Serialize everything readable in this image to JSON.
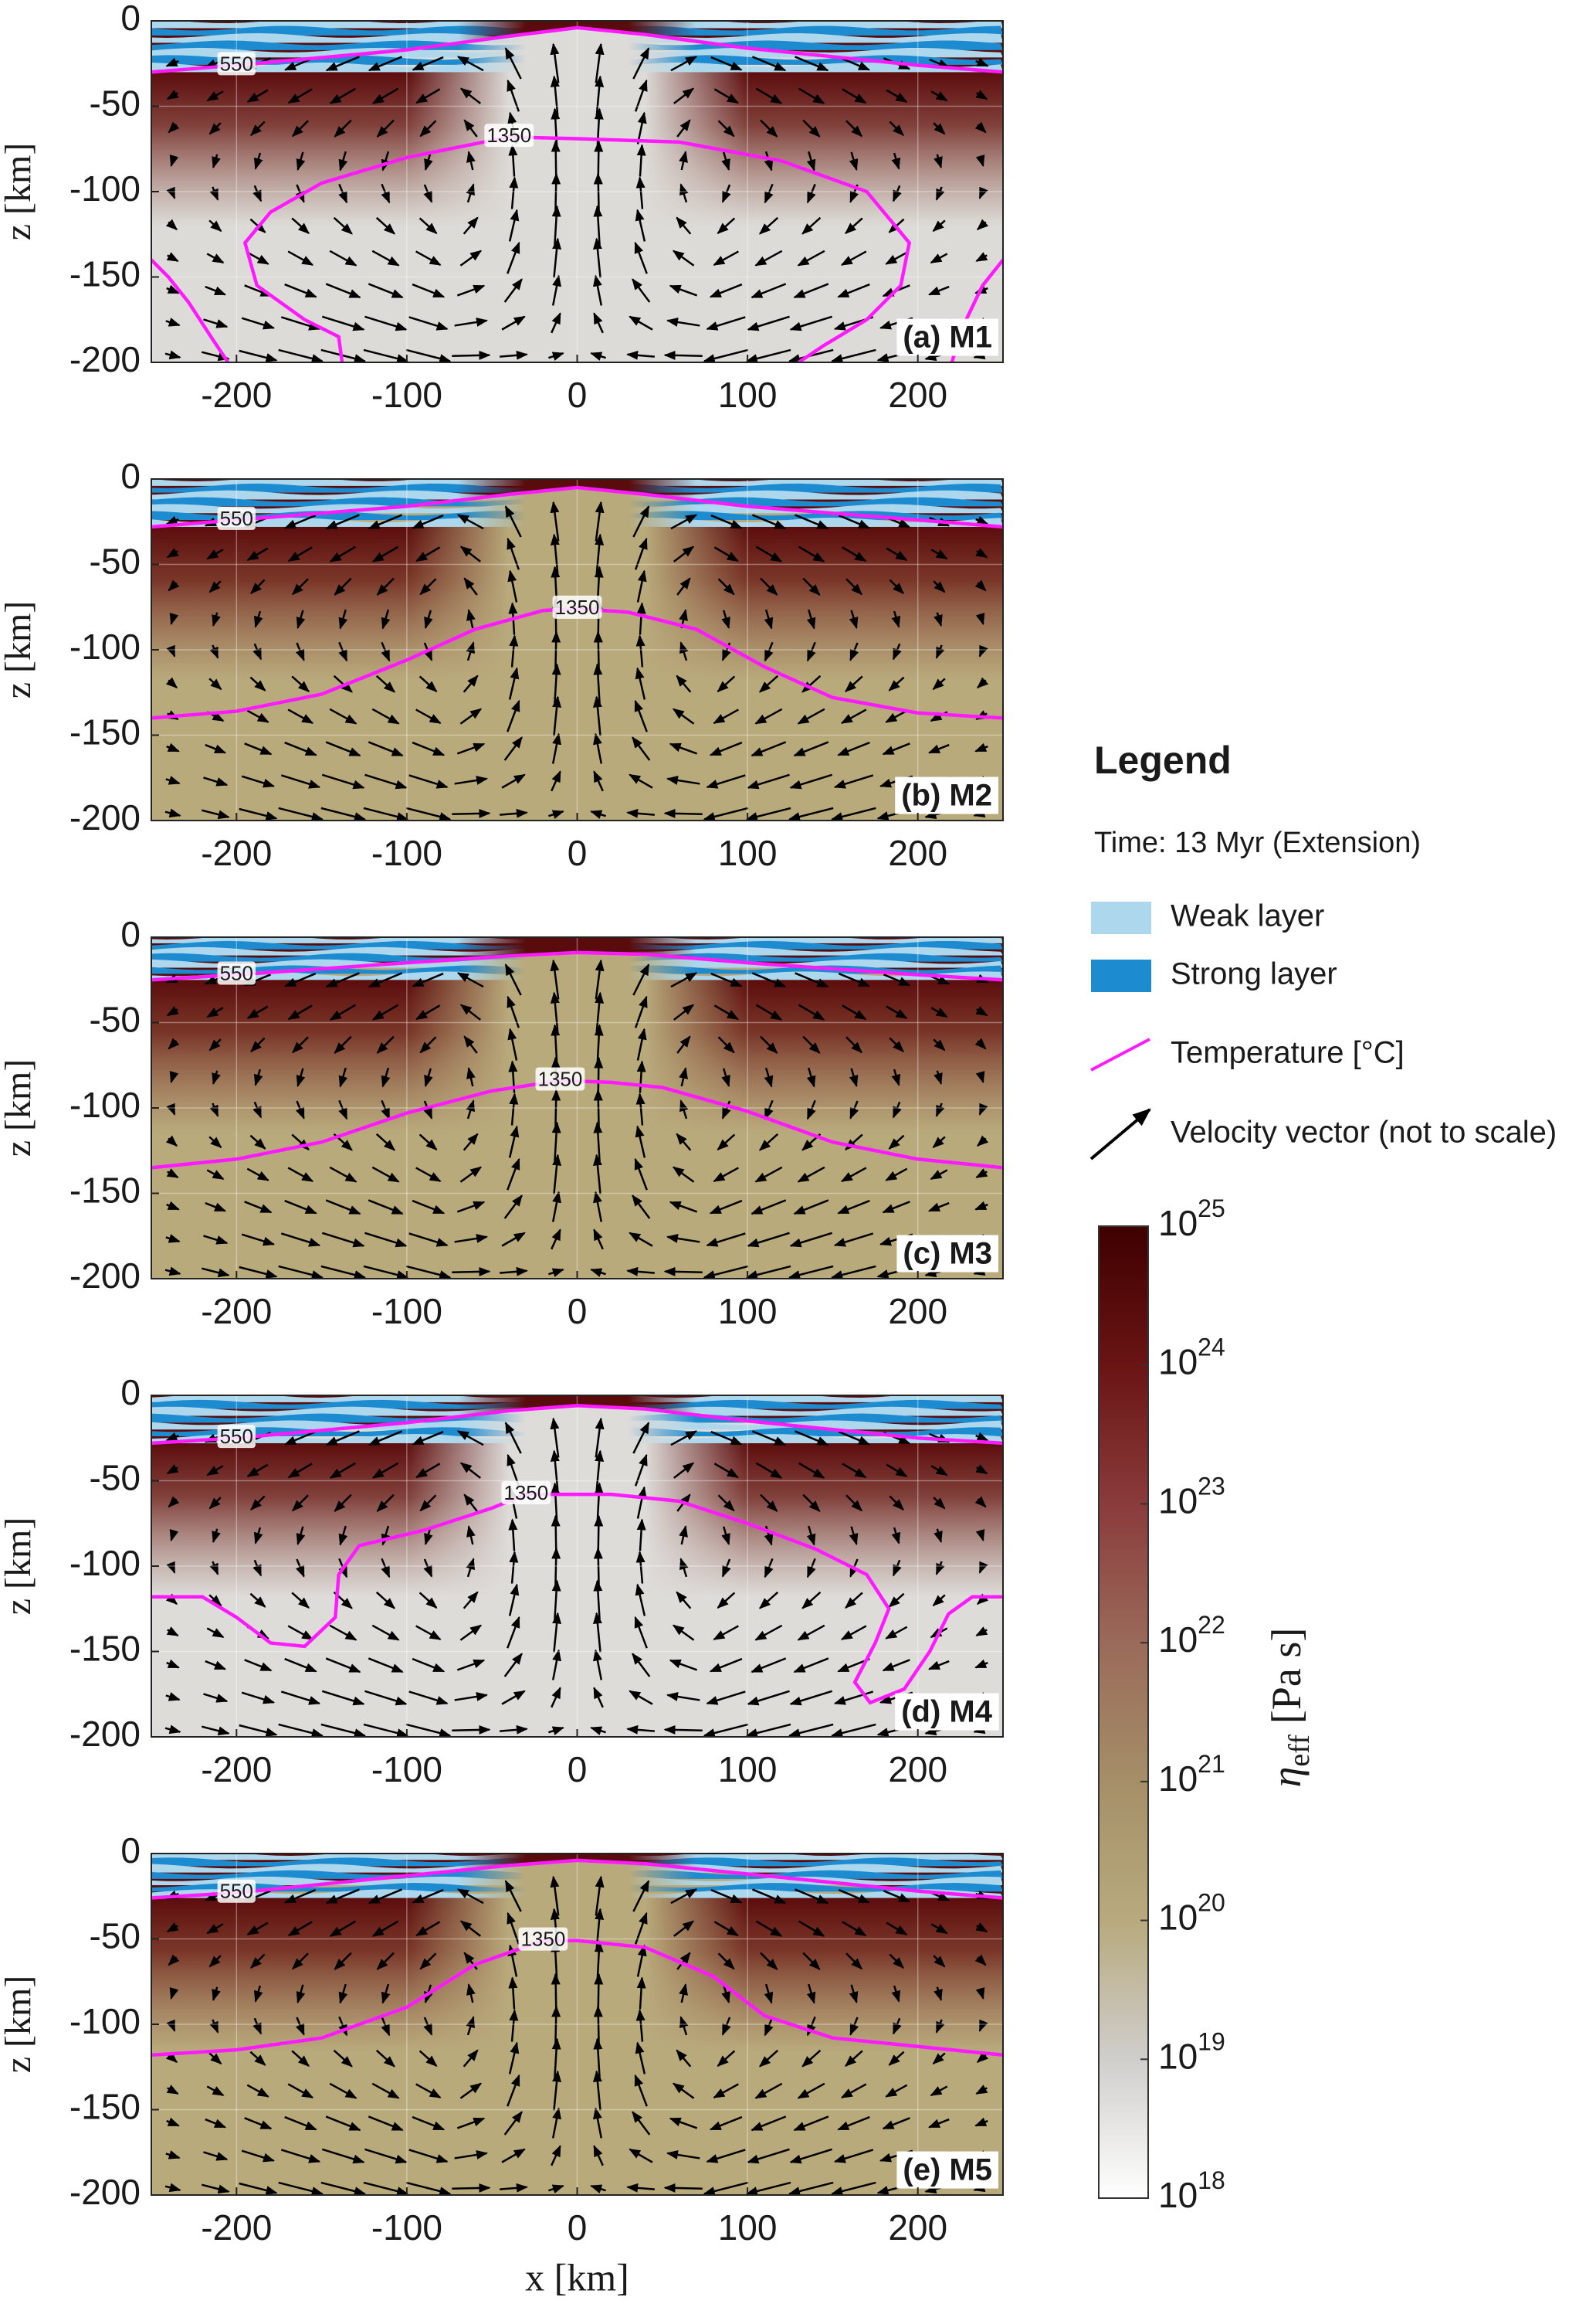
{
  "chart_data": [
    {
      "type": "field",
      "panel_label": "(a) M1",
      "ylabel": "z [km]",
      "xlim": [
        -250,
        250
      ],
      "ylim": [
        -200,
        0
      ],
      "xticks": [
        -200,
        -100,
        0,
        100,
        200
      ],
      "yticks": [
        0,
        -50,
        -100,
        -150,
        -200
      ],
      "grid": true,
      "mantle_color": "#dddbd7",
      "contours": [
        {
          "label": 550,
          "color": "#ff1aff",
          "x": [
            -250,
            -200,
            -100,
            -40,
            0,
            40,
            100,
            200,
            250
          ],
          "z": [
            -30,
            -26,
            -17,
            -9,
            -4,
            -8,
            -16,
            -26,
            -30
          ]
        },
        {
          "label": 1350,
          "color": "#ff1aff",
          "x": [
            -250,
            -240,
            -228,
            -215,
            -205,
            null,
            -138,
            -140,
            -160,
            -188,
            -195,
            -180,
            -150,
            -100,
            -40,
            0,
            60,
            120,
            170,
            195,
            190,
            170,
            145,
            130,
            null,
            250,
            238,
            226,
            220
          ],
          "z": [
            -140,
            -150,
            -165,
            -185,
            -200,
            null,
            -200,
            -185,
            -175,
            -155,
            -130,
            -112,
            -95,
            -80,
            -68,
            -69,
            -71,
            -82,
            -100,
            -130,
            -155,
            -175,
            -190,
            -200,
            null,
            -140,
            -155,
            -180,
            -200
          ]
        }
      ]
    },
    {
      "type": "field",
      "panel_label": "(b) M2",
      "ylabel": "z [km]",
      "xlim": [
        -250,
        250
      ],
      "ylim": [
        -200,
        0
      ],
      "xticks": [
        -200,
        -100,
        0,
        100,
        200
      ],
      "yticks": [
        0,
        -50,
        -100,
        -150,
        -200
      ],
      "grid": true,
      "mantle_color": "#b9aa7c",
      "contours": [
        {
          "label": 550,
          "color": "#ff1aff",
          "x": [
            -250,
            -200,
            -100,
            -40,
            0,
            40,
            100,
            200,
            250
          ],
          "z": [
            -28,
            -24,
            -16,
            -9,
            -5,
            -9,
            -16,
            -24,
            -28
          ]
        },
        {
          "label": 1350,
          "color": "#ff1aff",
          "x": [
            -250,
            -200,
            -150,
            -100,
            -60,
            -20,
            0,
            30,
            70,
            110,
            150,
            200,
            250
          ],
          "z": [
            -140,
            -136,
            -126,
            -106,
            -88,
            -77,
            -76,
            -78,
            -88,
            -110,
            -128,
            -137,
            -140
          ]
        }
      ]
    },
    {
      "type": "field",
      "panel_label": "(c) M3",
      "ylabel": "z [km]",
      "xlim": [
        -250,
        250
      ],
      "ylim": [
        -200,
        0
      ],
      "xticks": [
        -200,
        -100,
        0,
        100,
        200
      ],
      "yticks": [
        0,
        -50,
        -100,
        -150,
        -200
      ],
      "grid": true,
      "mantle_color": "#b9aa7c",
      "contours": [
        {
          "label": 550,
          "color": "#ff1aff",
          "x": [
            -250,
            -200,
            -100,
            -40,
            0,
            40,
            100,
            200,
            250
          ],
          "z": [
            -25,
            -22,
            -15,
            -11,
            -9,
            -10,
            -15,
            -22,
            -25
          ]
        },
        {
          "label": 1350,
          "color": "#ff1aff",
          "x": [
            -250,
            -200,
            -150,
            -100,
            -50,
            -10,
            20,
            50,
            100,
            150,
            200,
            250
          ],
          "z": [
            -135,
            -130,
            -120,
            -103,
            -90,
            -84,
            -85,
            -88,
            -102,
            -120,
            -130,
            -135
          ]
        }
      ]
    },
    {
      "type": "field",
      "panel_label": "(d) M4",
      "ylabel": "z [km]",
      "xlim": [
        -250,
        250
      ],
      "ylim": [
        -200,
        0
      ],
      "xticks": [
        -200,
        -100,
        0,
        100,
        200
      ],
      "yticks": [
        0,
        -50,
        -100,
        -150,
        -200
      ],
      "grid": true,
      "mantle_color": "#dedcd9",
      "contours": [
        {
          "label": 550,
          "color": "#ff1aff",
          "x": [
            -250,
            -200,
            -100,
            -40,
            0,
            40,
            100,
            200,
            250
          ],
          "z": [
            -28,
            -25,
            -16,
            -9,
            -6,
            -8,
            -15,
            -25,
            -28
          ]
        },
        {
          "label": 1350,
          "color": "#ff1aff",
          "x": [
            -250,
            -220,
            -200,
            -180,
            -160,
            -142,
            -140,
            -128,
            -90,
            -50,
            -30,
            20,
            60,
            100,
            140,
            170,
            183,
            175,
            163,
            172,
            192,
            207,
            218,
            232,
            250
          ],
          "z": [
            -118,
            -118,
            -130,
            -145,
            -147,
            -130,
            -105,
            -88,
            -79,
            -66,
            -58,
            -58,
            -62,
            -75,
            -90,
            -105,
            -125,
            -145,
            -168,
            -180,
            -172,
            -150,
            -128,
            -118,
            -118
          ]
        }
      ]
    },
    {
      "type": "field",
      "panel_label": "(e) M5",
      "ylabel": "z [km]",
      "xlabel": "x [km]",
      "xlim": [
        -250,
        250
      ],
      "ylim": [
        -200,
        0
      ],
      "xticks": [
        -200,
        -100,
        0,
        100,
        200
      ],
      "yticks": [
        0,
        -50,
        -100,
        -150,
        -200
      ],
      "grid": true,
      "mantle_color": "#b9aa7c",
      "contours": [
        {
          "label": 550,
          "color": "#ff1aff",
          "x": [
            -250,
            -200,
            -100,
            -40,
            0,
            40,
            100,
            200,
            250
          ],
          "z": [
            -26,
            -23,
            -13,
            -7,
            -4,
            -6,
            -12,
            -22,
            -26
          ]
        },
        {
          "label": 1350,
          "color": "#ff1aff",
          "x": [
            -250,
            -200,
            -150,
            -100,
            -60,
            -20,
            0,
            40,
            80,
            110,
            150,
            200,
            250
          ],
          "z": [
            -118,
            -115,
            -108,
            -90,
            -65,
            -51,
            -51,
            -55,
            -72,
            -95,
            -108,
            -113,
            -118
          ]
        }
      ]
    }
  ],
  "legend": {
    "title": "Legend",
    "time": "Time: 13 Myr (Extension)",
    "items": [
      {
        "name": "Weak layer",
        "color": "#acd7ec"
      },
      {
        "name": "Strong layer",
        "color": "#1d8bd0"
      },
      {
        "name": "Temperature [°C]",
        "color": "#ff1aff"
      },
      {
        "name": "Velocity vector (not to scale)",
        "color": "#000000"
      }
    ]
  },
  "colorbar": {
    "label": "η",
    "label_sub": "eff",
    "label_unit": "[Pa s]",
    "tick_base": "10",
    "lim": [
      18,
      25
    ],
    "ticks": [
      18,
      19,
      20,
      21,
      22,
      23,
      24,
      25
    ],
    "colors": [
      "#ffffff",
      "#cfcecb",
      "#b8aa7e",
      "#a58f68",
      "#9a6a5a",
      "#8a3b3b",
      "#6a1414",
      "#3f0000"
    ]
  }
}
